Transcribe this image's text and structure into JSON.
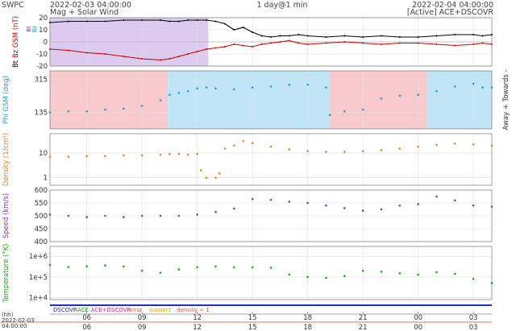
{
  "header": {
    "agency": "SWPC",
    "start_time": "2022-02-03 04:00:00",
    "subtitle": "Mag + Solar Wind",
    "span": "1 day@1 min",
    "end_time": "2022-02-04 04:00:00",
    "source": "[Active] ACE+DSCOVR"
  },
  "chart_data": [
    {
      "type": "line",
      "ylabel": "Bt Bz GSM (nT)",
      "ylabel_parts": [
        "Bt",
        "Bz GSM (nT)"
      ],
      "ylim": [
        -20,
        20
      ],
      "yticks": [
        -20,
        -10,
        0,
        10,
        20
      ],
      "legend_icons": [
        "Bt",
        "Bz"
      ],
      "series": [
        {
          "name": "Bt",
          "color": "#000000",
          "x": [
            0,
            1,
            2,
            3,
            4,
            5,
            6,
            6.5,
            7,
            7.5,
            8,
            8.5,
            9,
            9.5,
            10,
            10.5,
            11,
            11.5,
            12,
            12.5,
            13,
            13.5,
            14,
            15,
            16,
            17,
            18,
            19,
            20,
            21,
            22,
            23,
            23.5,
            24
          ],
          "y": [
            16,
            17,
            17,
            17,
            18,
            18,
            18,
            17,
            17,
            18,
            18,
            18,
            17,
            15,
            10,
            12,
            8,
            5,
            4,
            5,
            5,
            6,
            5,
            4,
            5,
            4,
            5,
            4,
            4,
            5,
            6,
            6,
            5,
            6
          ]
        },
        {
          "name": "Bz",
          "color": "#cc0000",
          "x": [
            0,
            1,
            2,
            3,
            4,
            5,
            6,
            6.5,
            7,
            7.5,
            8,
            8.5,
            9,
            9.5,
            10,
            10.5,
            11,
            11.5,
            12,
            12.5,
            13,
            13.5,
            14,
            15,
            16,
            17,
            18,
            19,
            20,
            21,
            22,
            23,
            23.5,
            24
          ],
          "y": [
            -6,
            -7,
            -9,
            -10,
            -12,
            -14,
            -15,
            -14,
            -12,
            -10,
            -8,
            -6,
            -5,
            -4,
            -2,
            -3,
            -4,
            -2,
            -1,
            0,
            1,
            -1,
            -2,
            -1,
            0,
            -1,
            -2,
            -1,
            -1,
            -2,
            -3,
            -2,
            -1,
            -2
          ]
        }
      ],
      "shading": [
        {
          "from": 0,
          "to": 8.6,
          "kind": "southward",
          "color": "#d8c4ee"
        }
      ],
      "bottom_label": ""
    },
    {
      "type": "scatter",
      "ylabel": "Phi GSM (deg)",
      "ylim": [
        45,
        360
      ],
      "yticks": [
        135,
        315
      ],
      "right_label": "Away + Towards -",
      "series": [
        {
          "name": "Phi",
          "color": "#22a0d0",
          "x": [
            0,
            1,
            2,
            3,
            4,
            5,
            6,
            6.5,
            7,
            7.5,
            8,
            8.5,
            9,
            10,
            11,
            12,
            13,
            14,
            15,
            15.2,
            16,
            17,
            18,
            19,
            20,
            21,
            22,
            23,
            23.5,
            24
          ],
          "y": [
            135,
            140,
            140,
            150,
            155,
            170,
            200,
            230,
            240,
            250,
            265,
            270,
            265,
            260,
            270,
            275,
            285,
            285,
            270,
            120,
            140,
            150,
            210,
            225,
            230,
            250,
            275,
            290,
            270,
            270
          ]
        }
      ],
      "shading": [
        {
          "from": 0,
          "to": 6.4,
          "kind": "towards",
          "color": "#f8c4c8"
        },
        {
          "from": 6.4,
          "to": 15.2,
          "kind": "away",
          "color": "#b8e2f6"
        },
        {
          "from": 15.2,
          "to": 20.5,
          "kind": "towards",
          "color": "#f8c4c8"
        },
        {
          "from": 20.5,
          "to": 24,
          "kind": "away",
          "color": "#b8e2f6"
        }
      ]
    },
    {
      "type": "scatter",
      "ylabel": "Density (1/cm³)",
      "ylim": [
        0.5,
        60
      ],
      "log": true,
      "yticks": [
        1,
        10
      ],
      "series": [
        {
          "name": "Density",
          "color": "#f08020",
          "x": [
            0,
            1,
            2,
            3,
            4,
            5,
            6,
            6.5,
            7,
            7.5,
            8,
            8.2,
            8.5,
            9,
            9.2,
            9.5,
            10,
            10.5,
            11,
            12,
            13,
            14,
            15,
            16,
            17,
            18,
            19,
            20,
            21,
            22,
            23,
            24
          ],
          "y": [
            7,
            7,
            7.5,
            7.5,
            8,
            8,
            8.5,
            9,
            9,
            8.5,
            9,
            2,
            1,
            1,
            1.5,
            15,
            20,
            30,
            25,
            18,
            14,
            12,
            11,
            11,
            12,
            13,
            15,
            18,
            21,
            24,
            22,
            20
          ]
        }
      ]
    },
    {
      "type": "scatter",
      "ylabel": "Speed (km/s)",
      "ylim": [
        400,
        600
      ],
      "yticks": [
        400,
        450,
        500,
        550,
        600
      ],
      "series": [
        {
          "name": "Speed",
          "color": "#9030d0",
          "x": [
            0,
            1,
            2,
            3,
            4,
            5,
            6,
            7,
            8,
            9,
            10,
            11,
            12,
            13,
            14,
            15,
            16,
            17,
            18,
            19,
            20,
            21,
            22,
            23,
            24
          ],
          "y": [
            505,
            500,
            495,
            500,
            495,
            500,
            500,
            500,
            505,
            515,
            528,
            565,
            562,
            555,
            550,
            540,
            530,
            520,
            525,
            540,
            545,
            575,
            560,
            540,
            535
          ]
        }
      ]
    },
    {
      "type": "scatter",
      "ylabel": "Temperature (°K)",
      "ylim": [
        8000,
        3000000
      ],
      "log": true,
      "yticks": [
        10000,
        100000,
        1000000
      ],
      "ytick_labels": [
        "1e+4",
        "1e+5",
        "1e+6"
      ],
      "series": [
        {
          "name": "Temperature",
          "color": "#10b010",
          "x": [
            0,
            1,
            2,
            3,
            4,
            5,
            6,
            7,
            8,
            9,
            10,
            11,
            12,
            13,
            14,
            15,
            16,
            17,
            18,
            19,
            20,
            21,
            22,
            23,
            24
          ],
          "y": [
            380000,
            300000,
            330000,
            360000,
            320000,
            200000,
            160000,
            230000,
            300000,
            320000,
            290000,
            290000,
            280000,
            130000,
            100000,
            90000,
            110000,
            200000,
            180000,
            150000,
            130000,
            170000,
            140000,
            80000,
            50000
          ]
        }
      ]
    }
  ],
  "source_legend": {
    "items": [
      {
        "label": "DSCOVR",
        "color": "#2030c0"
      },
      {
        "label": "ACE",
        "color": "#10a010"
      },
      {
        "label": "ACE+DSCOVR",
        "color": "#d020a0"
      },
      {
        "label": "error",
        "color": "#e06030"
      },
      {
        "label": "suspect",
        "color": "#e0a020"
      },
      {
        "label": "density < 1",
        "color": "#e06030"
      }
    ]
  },
  "time_axis": {
    "ticks_hours": [
      2,
      5,
      8,
      11,
      14,
      17,
      20,
      23
    ],
    "tick_labels": [
      "06",
      "09",
      "12",
      "15",
      "18",
      "21",
      "00",
      "03"
    ],
    "row_label_hh": "(hh)",
    "dates_left": [
      "2022-02-03",
      "04:00:00"
    ]
  }
}
